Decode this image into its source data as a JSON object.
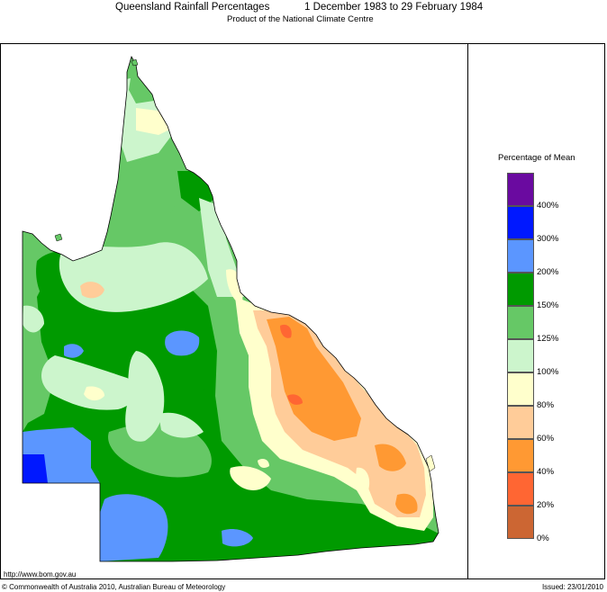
{
  "header": {
    "title": "Queensland Rainfall Percentages",
    "dates": "1 December 1983 to 29 February 1984",
    "subtitle": "Product of the National Climate Centre"
  },
  "legend": {
    "title": "Percentage of Mean",
    "classes": [
      {
        "range": "> 400%",
        "color": "#6a0aa0"
      },
      {
        "range": "300-400%",
        "color": "#0018ff"
      },
      {
        "range": "200-300%",
        "color": "#5b96ff"
      },
      {
        "range": "150-200%",
        "color": "#009a00"
      },
      {
        "range": "125-150%",
        "color": "#66c866"
      },
      {
        "range": "100-125%",
        "color": "#ccf5cc"
      },
      {
        "range": "80-100%",
        "color": "#ffffcc"
      },
      {
        "range": "60-80%",
        "color": "#ffcc99"
      },
      {
        "range": "40-60%",
        "color": "#ff9933"
      },
      {
        "range": "20-40%",
        "color": "#ff6633"
      },
      {
        "range": "0-20%",
        "color": "#cc6633"
      }
    ],
    "ticks": [
      "400%",
      "300%",
      "200%",
      "150%",
      "125%",
      "100%",
      "80%",
      "60%",
      "40%",
      "20%",
      "0%"
    ]
  },
  "footer": {
    "url": "http://www.bom.gov.au",
    "copyright": "© Commonwealth of Australia 2010, Australian Bureau of Meteorology",
    "issued": "Issued: 23/01/2010"
  }
}
